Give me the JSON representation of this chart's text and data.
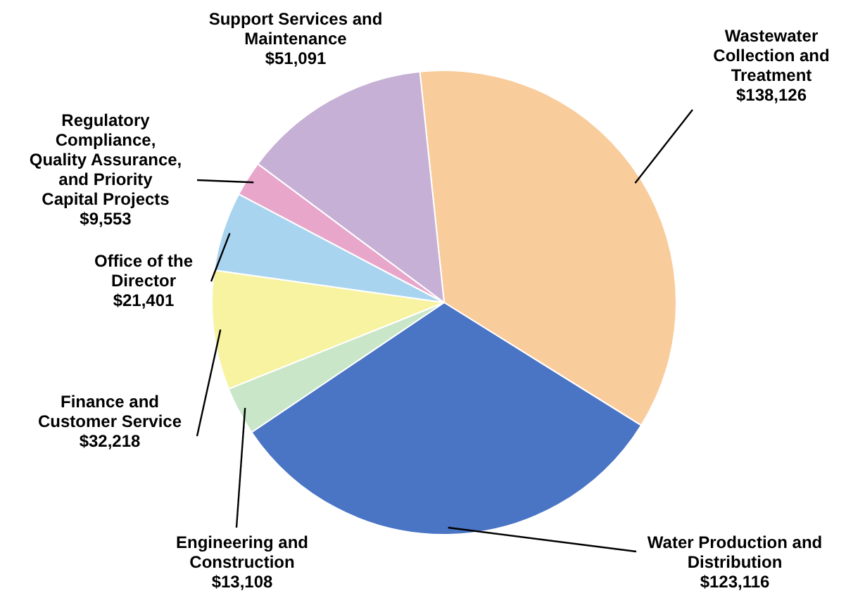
{
  "chart_data": {
    "type": "pie",
    "categories": [
      "Wastewater Collection and Treatment",
      "Water Production and Distribution",
      "Engineering and Construction",
      "Finance and Customer Service",
      "Office of the Director",
      "Regulatory Compliance, Quality Assurance, and Priority Capital Projects",
      "Support Services and Maintenance"
    ],
    "values": [
      138126,
      123116,
      13108,
      32218,
      21401,
      9553,
      51091
    ],
    "value_labels": [
      "$138,126",
      "$123,116",
      "$13,108",
      "$32,218",
      "$21,401",
      "$9,553",
      "$51,091"
    ],
    "colors": [
      "#f9cc9c",
      "#4a74c4",
      "#c9e6c9",
      "#f7f3a1",
      "#a9d4ef",
      "#e8a6cb",
      "#c6b0d6"
    ],
    "legend": false
  }
}
